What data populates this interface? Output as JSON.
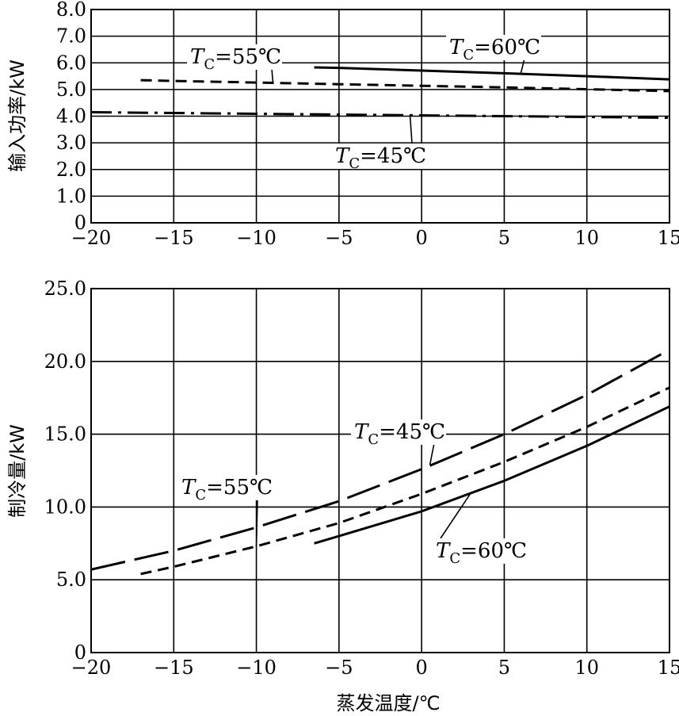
{
  "chart_data": [
    {
      "type": "line",
      "ylabel": "输入功率/kW",
      "xlim": [
        -20,
        15
      ],
      "ylim": [
        0,
        8
      ],
      "xticks": [
        "−20",
        "−15",
        "−10",
        "−5",
        "0",
        "5",
        "10",
        "15"
      ],
      "yticks": [
        "0",
        "1.0",
        "2.0",
        "3.0",
        "4.0",
        "5.0",
        "6.0",
        "7.0",
        "8.0"
      ],
      "grid": true,
      "series": [
        {
          "name": "TC=45℃",
          "style": "dashdot",
          "x": [
            -20,
            -15,
            -10,
            -5,
            0,
            5,
            10,
            15
          ],
          "values": [
            4.15,
            4.12,
            4.09,
            4.06,
            4.03,
            4.0,
            3.97,
            3.94
          ]
        },
        {
          "name": "TC=55℃",
          "style": "dashed",
          "x": [
            -17,
            -15,
            -10,
            -5,
            0,
            5,
            10,
            15
          ],
          "values": [
            5.35,
            5.32,
            5.26,
            5.2,
            5.14,
            5.08,
            5.01,
            4.94
          ]
        },
        {
          "name": "TC=60℃",
          "style": "solid",
          "x": [
            -6.5,
            -5,
            0,
            5,
            10,
            15
          ],
          "values": [
            5.83,
            5.81,
            5.71,
            5.61,
            5.5,
            5.38
          ]
        }
      ],
      "annotations": [
        {
          "base": "T",
          "sub": "C",
          "rest": "=55℃",
          "target_x": -9,
          "target_y": 5.26
        },
        {
          "base": "T",
          "sub": "C",
          "rest": "=60℃",
          "target_x": 6,
          "target_y": 5.6
        },
        {
          "base": "T",
          "sub": "C",
          "rest": "=45℃",
          "target_x": -0.7,
          "target_y": 4.04
        }
      ]
    },
    {
      "type": "line",
      "xlabel": "蒸发温度/℃",
      "ylabel": "制冷量/kW",
      "xlim": [
        -20,
        15
      ],
      "ylim": [
        0,
        25
      ],
      "xticks": [
        "−20",
        "−15",
        "−10",
        "−5",
        "0",
        "5",
        "10",
        "15"
      ],
      "yticks": [
        "0",
        "5.0",
        "10.0",
        "15.0",
        "20.0",
        "25.0"
      ],
      "grid": true,
      "series": [
        {
          "name": "TC=45℃",
          "style": "longdash",
          "x": [
            -20,
            -15,
            -10,
            -5,
            0,
            5,
            10,
            15
          ],
          "values": [
            5.7,
            7.0,
            8.6,
            10.4,
            12.6,
            15.0,
            17.7,
            20.8
          ]
        },
        {
          "name": "TC=55℃",
          "style": "dashed",
          "x": [
            -17,
            -15,
            -10,
            -5,
            0,
            5,
            10,
            15
          ],
          "values": [
            5.4,
            5.9,
            7.3,
            8.9,
            10.9,
            13.1,
            15.5,
            18.2
          ]
        },
        {
          "name": "TC=60℃",
          "style": "solid",
          "x": [
            -6.5,
            -5,
            0,
            5,
            10,
            15
          ],
          "values": [
            7.5,
            8.0,
            9.7,
            11.8,
            14.2,
            16.9
          ]
        }
      ],
      "annotations": [
        {
          "base": "T",
          "sub": "C",
          "rest": "=45℃",
          "target_x": 0.5,
          "target_y": 12.9
        },
        {
          "base": "T",
          "sub": "C",
          "rest": "=55℃",
          "target_x": -10,
          "target_y": 7.3
        },
        {
          "base": "T",
          "sub": "C",
          "rest": "=60℃",
          "target_x": 3,
          "target_y": 11.0
        }
      ]
    }
  ]
}
